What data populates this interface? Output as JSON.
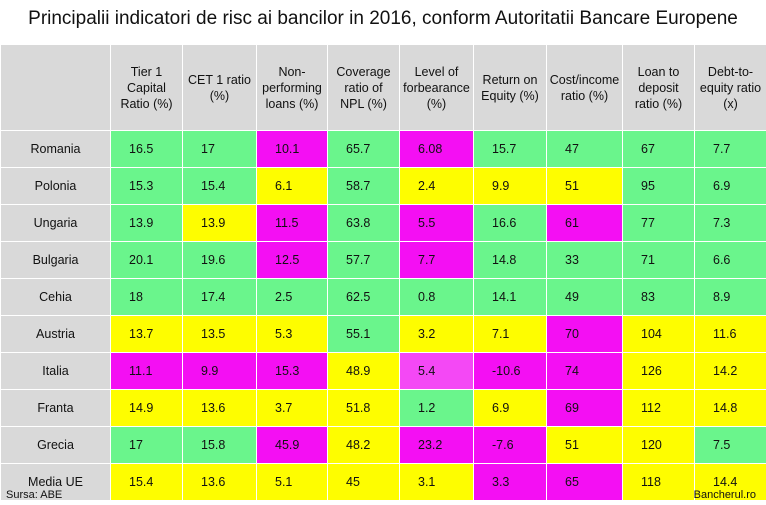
{
  "title": "Principalii indicatori de risc ai bancilor in 2016, conform Autoritatii Bancare Europene",
  "footer": {
    "source": "Sursa: ABE",
    "brand": "Bancherul.ro"
  },
  "colors": {
    "green": "#6af58c",
    "yellow": "#fefd00",
    "magenta": "#f40ff3",
    "pink": "#f448f5",
    "header_bg": "#d9d9d9"
  },
  "chart_data": {
    "type": "table",
    "title": "Principalii indicatori de risc ai bancilor in 2016, conform Autoritatii Bancare Europene",
    "columns": [
      "Tier 1\nCapital\nRatio (%)",
      "CET 1 ratio\n(%)",
      "Non-\nperforming\nloans (%)",
      "Coverage\nratio of\nNPL (%)",
      "Level of\nforbearance\n(%)",
      "Return on\nEquity (%)",
      "Cost/income\nratio (%)",
      "Loan to\ndeposit\nratio (%)",
      "Debt-to-\nequity ratio\n(x)"
    ],
    "rows": [
      {
        "name": "Romania",
        "values": [
          "16.5",
          "17",
          "10.1",
          "65.7",
          "6.08",
          "15.7",
          "47",
          "67",
          "7.7"
        ],
        "colors": [
          "green",
          "green",
          "magenta",
          "green",
          "magenta",
          "green",
          "green",
          "green",
          "green"
        ]
      },
      {
        "name": "Polonia",
        "values": [
          "15.3",
          "15.4",
          "6.1",
          "58.7",
          "2.4",
          "9.9",
          "51",
          "95",
          "6.9"
        ],
        "colors": [
          "green",
          "green",
          "yellow",
          "green",
          "yellow",
          "yellow",
          "yellow",
          "green",
          "green"
        ]
      },
      {
        "name": "Ungaria",
        "values": [
          "13.9",
          "13.9",
          "11.5",
          "63.8",
          "5.5",
          "16.6",
          "61",
          "77",
          "7.3"
        ],
        "colors": [
          "green",
          "yellow",
          "magenta",
          "green",
          "magenta",
          "green",
          "magenta",
          "green",
          "green"
        ]
      },
      {
        "name": "Bulgaria",
        "values": [
          "20.1",
          "19.6",
          "12.5",
          "57.7",
          "7.7",
          "14.8",
          "33",
          "71",
          "6.6"
        ],
        "colors": [
          "green",
          "green",
          "magenta",
          "green",
          "magenta",
          "green",
          "green",
          "green",
          "green"
        ]
      },
      {
        "name": "Cehia",
        "values": [
          "18",
          "17.4",
          "2.5",
          "62.5",
          "0.8",
          "14.1",
          "49",
          "83",
          "8.9"
        ],
        "colors": [
          "green",
          "green",
          "green",
          "green",
          "green",
          "green",
          "green",
          "green",
          "green"
        ]
      },
      {
        "name": "Austria",
        "values": [
          "13.7",
          "13.5",
          "5.3",
          "55.1",
          "3.2",
          "7.1",
          "70",
          "104",
          "11.6"
        ],
        "colors": [
          "yellow",
          "yellow",
          "yellow",
          "green",
          "yellow",
          "yellow",
          "magenta",
          "yellow",
          "yellow"
        ]
      },
      {
        "name": "Italia",
        "values": [
          "11.1",
          "9.9",
          "15.3",
          "48.9",
          "5.4",
          "-10.6",
          "74",
          "126",
          "14.2"
        ],
        "colors": [
          "magenta",
          "magenta",
          "magenta",
          "yellow",
          "pink",
          "magenta",
          "magenta",
          "yellow",
          "yellow"
        ]
      },
      {
        "name": "Franta",
        "values": [
          "14.9",
          "13.6",
          "3.7",
          "51.8",
          "1.2",
          "6.9",
          "69",
          "112",
          "14.8"
        ],
        "colors": [
          "yellow",
          "yellow",
          "yellow",
          "yellow",
          "green",
          "yellow",
          "magenta",
          "yellow",
          "yellow"
        ]
      },
      {
        "name": "Grecia",
        "values": [
          "17",
          "15.8",
          "45.9",
          "48.2",
          "23.2",
          "-7.6",
          "51",
          "120",
          "7.5"
        ],
        "colors": [
          "green",
          "green",
          "magenta",
          "yellow",
          "magenta",
          "magenta",
          "yellow",
          "yellow",
          "green"
        ]
      },
      {
        "name": "Media UE",
        "values": [
          "15.4",
          "13.6",
          "5.1",
          "45",
          "3.1",
          "3.3",
          "65",
          "118",
          "14.4"
        ],
        "colors": [
          "yellow",
          "yellow",
          "yellow",
          "yellow",
          "yellow",
          "magenta",
          "magenta",
          "yellow",
          "yellow"
        ]
      }
    ]
  }
}
